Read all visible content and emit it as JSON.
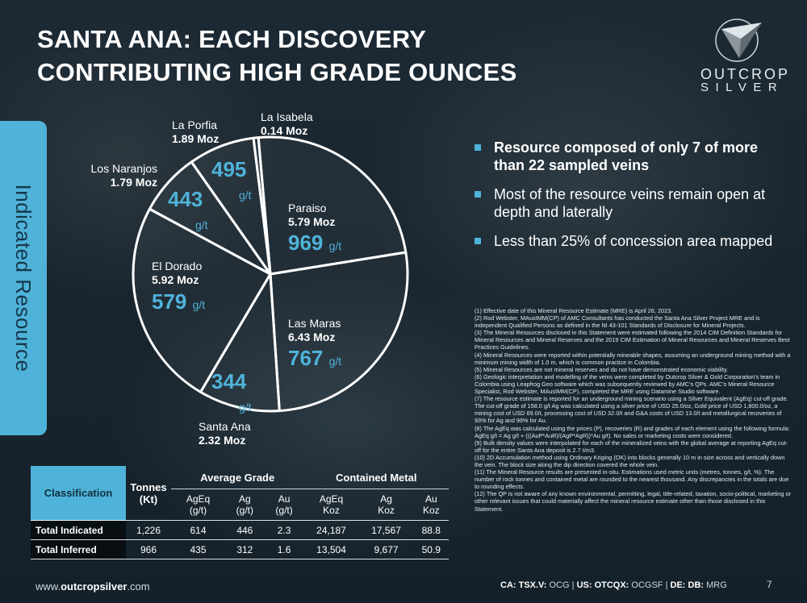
{
  "slide": {
    "title_line1": "SANTA ANA: EACH DISCOVERY",
    "title_line2": "CONTRIBUTING HIGH GRADE OUNCES",
    "logo_word1": "OUTCROP",
    "logo_word2": "SILVER",
    "side_tab": "Indicated Resource"
  },
  "pie": {
    "grade_unit": "g/t",
    "slices": [
      {
        "name": "Paraiso",
        "moz": "5.79 Moz",
        "value": 5.79,
        "grade": "969"
      },
      {
        "name": "Las Maras",
        "moz": "6.43 Moz",
        "value": 6.43,
        "grade": "767"
      },
      {
        "name": "Santa Ana",
        "moz": "2.32 Moz",
        "value": 2.32,
        "grade": "344"
      },
      {
        "name": "El Dorado",
        "moz": "5.92 Moz",
        "value": 5.92,
        "grade": "579"
      },
      {
        "name": "Los Naranjos",
        "moz": "1.79 Moz",
        "value": 1.79,
        "grade": "443"
      },
      {
        "name": "La Porfia",
        "moz": "1.89 Moz",
        "value": 1.89,
        "grade": "495"
      },
      {
        "name": "La Isabela",
        "moz": "0.14 Moz",
        "value": 0.14,
        "grade": ""
      }
    ]
  },
  "bullets": [
    {
      "text": "Resource composed of only 7 of more than 22 sampled veins"
    },
    {
      "text": "Most of the resource veins remain open at depth and laterally"
    },
    {
      "text": "Less than 25%  of concession area mapped"
    }
  ],
  "notes": [
    "(1) Effective date of this Mineral Resource Estimate (MRE) is April 26, 2023.",
    "(2) Rod Webster, MAusIMM(CP) of AMC Consultants has conducted the Santa Ana Silver Project MRE and is independent Qualified Persons as defined in the NI 43-101 Standards of Disclosure for Mineral Projects.",
    "(3) The Mineral Resources disclosed in this Statement were estimated following the 2014 CIM Definition Standards for Mineral Resources and Mineral Reserves and the 2019 CIM Estimation of Mineral Resources and Mineral Reserves Best Practices Guidelines.",
    "(4) Mineral Resources were reported within potentially mineable shapes, assuming an underground mining method with a minimum mining width of 1.0 m, which is common practice in Colombia.",
    "(5) Mineral Resources are not mineral reserves and do not have demonstrated economic viability.",
    "(6) Geologic interpretation and modelling of the veins were completed by Outcrop Silver & Gold Corporation's team in Colombia using Leapfrog Geo software which was subsequently reviewed by AMC's QPs. AMC's Mineral Resource Specialist, Rod Webster, MAusIMM(CP), completed the MRE using Datamine Studio software.",
    "(7) The resource estimate is reported for an underground mining scenario using a Silver Equivalent (AgEq) cut-off grade. The cut-off grade of 158.0 g/t Ag was calculated using a silver price of USD 25.0/oz, Gold price of USD 1,800.0/oz, a mining cost of USD 69.0/t, processing cost of USD 32.0/t and G&A costs of USD 13.0/t and metallurgical recoveries of 93% for Ag and 96% for Au.",
    "(8) The AgEq was calculated using the prices (P), recoveries (R) and grades of each element using the following formula: AgEq g/t = Ag g/t + (((AuP*AuR)/(AgP*AgR))*Au g/t). No sales or marketing costs were considered.",
    "(9) Bulk density values were interpolated for each of the mineralized veins with the global average at reporting AgEq cut-off for the entire Santa Ana deposit is 2.7 t/m3.",
    "(10) 2D Accumulation method using Ordinary Kriging (OK) into blocks generally 10 m in size across and vertically down the vein. The block size along the dip direction covered the whole vein.",
    "(11) The Mineral Resource results are presented in-situ. Estimations used metric units (metres, tonnes, g/t, %). The number of rock tonnes and contained metal are rounded to the nearest thousand. Any discrepancies in the totals are due to rounding effects.",
    "(12) The QP is not aware of any known environmental, permitting, legal, title-related, taxation, socio-political, marketing or other relevant issues that could materially affect the mineral resource estimate other than those disclosed in this Statement."
  ],
  "table": {
    "classification": "Classification",
    "tonnes": "Tonnes",
    "tonnes_unit": "(Kt)",
    "avg_grade": "Average Grade",
    "contained_metal": "Contained Metal",
    "cols": [
      {
        "l1": "AgEq",
        "l2": "(g/t)"
      },
      {
        "l1": "Ag",
        "l2": "(g/t)"
      },
      {
        "l1": "Au",
        "l2": "(g/t)"
      },
      {
        "l1": "AgEq",
        "l2": "Koz"
      },
      {
        "l1": "Ag",
        "l2": "Koz"
      },
      {
        "l1": "Au",
        "l2": "Koz"
      }
    ],
    "rows": [
      {
        "label": "Total Indicated",
        "cells": [
          "1,226",
          "614",
          "446",
          "2.3",
          "24,187",
          "17,567",
          "88.8"
        ]
      },
      {
        "label": "Total Inferred",
        "cells": [
          "966",
          "435",
          "312",
          "1.6",
          "13,504",
          "9,677",
          "50.9"
        ]
      }
    ]
  },
  "footer": {
    "url_pre": "www.",
    "url_bold": "outcropsilver",
    "url_post": ".com",
    "ca_label": "CA: TSX.V:",
    "ca_value": " OCG",
    "us_label": "US: OTCQX:",
    "us_value": " OCGSF",
    "de_label": "DE: DB:",
    "de_value": " MRG",
    "sep": "  |  ",
    "page": "7"
  },
  "colors": {
    "accent": "#4fb3d9",
    "background": "#1e2a33"
  }
}
